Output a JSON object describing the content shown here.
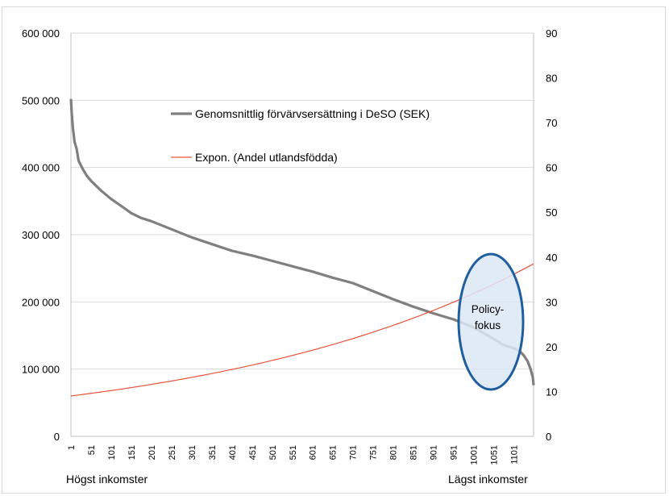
{
  "chart_data": {
    "type": "line",
    "title": "",
    "xlabel": "",
    "ylabel": "",
    "y_left": {
      "min": 0,
      "max": 600000,
      "step": 100000,
      "ticks": [
        "0",
        "100 000",
        "200 000",
        "300 000",
        "400 000",
        "500 000",
        "600 000"
      ]
    },
    "y_right": {
      "min": 0,
      "max": 90,
      "step": 10,
      "ticks": [
        "0",
        "10",
        "20",
        "30",
        "40",
        "50",
        "60",
        "70",
        "80",
        "90"
      ]
    },
    "x_ticks": [
      "1",
      "51",
      "101",
      "151",
      "201",
      "251",
      "301",
      "351",
      "401",
      "451",
      "501",
      "551",
      "601",
      "651",
      "701",
      "751",
      "801",
      "851",
      "901",
      "951",
      "1001",
      "1051",
      "1101"
    ],
    "x_range": [
      1,
      1150
    ],
    "grid": "horizontal",
    "legend_position": "top-center",
    "series": [
      {
        "name": "Genomsnittlig förvärvsersättning i DeSO (SEK)",
        "axis": "left",
        "color": "#7f7f7f",
        "points": [
          [
            1,
            502000
          ],
          [
            3,
            480000
          ],
          [
            6,
            458000
          ],
          [
            10,
            438000
          ],
          [
            15,
            428000
          ],
          [
            20,
            410000
          ],
          [
            30,
            398000
          ],
          [
            40,
            388000
          ],
          [
            51,
            380000
          ],
          [
            75,
            366000
          ],
          [
            101,
            353000
          ],
          [
            130,
            341000
          ],
          [
            151,
            332000
          ],
          [
            175,
            325000
          ],
          [
            201,
            320000
          ],
          [
            251,
            308000
          ],
          [
            301,
            296000
          ],
          [
            351,
            286000
          ],
          [
            401,
            276000
          ],
          [
            451,
            269000
          ],
          [
            501,
            261000
          ],
          [
            551,
            253000
          ],
          [
            601,
            245000
          ],
          [
            651,
            236000
          ],
          [
            701,
            228000
          ],
          [
            751,
            216000
          ],
          [
            801,
            204000
          ],
          [
            851,
            193000
          ],
          [
            901,
            183000
          ],
          [
            951,
            174000
          ],
          [
            1001,
            162000
          ],
          [
            1051,
            145000
          ],
          [
            1075,
            136000
          ],
          [
            1101,
            131000
          ],
          [
            1115,
            127000
          ],
          [
            1125,
            121000
          ],
          [
            1135,
            112000
          ],
          [
            1142,
            101000
          ],
          [
            1148,
            88000
          ],
          [
            1150,
            76000
          ]
        ]
      },
      {
        "name": "Expon. (Andel utlandsfödda)",
        "axis": "right",
        "color": "#e8543b",
        "trend": "exponential",
        "start": [
          1,
          9.0
        ],
        "end": [
          1150,
          38.5
        ]
      }
    ],
    "annotations": [
      {
        "type": "ellipse",
        "lines": [
          "Policy-",
          "fokus"
        ],
        "color": "#1f5fa0",
        "fill": "#dbe8f5"
      }
    ]
  },
  "footer": {
    "left_label": "Högst inkomster",
    "right_label": "Lägst inkomster"
  }
}
